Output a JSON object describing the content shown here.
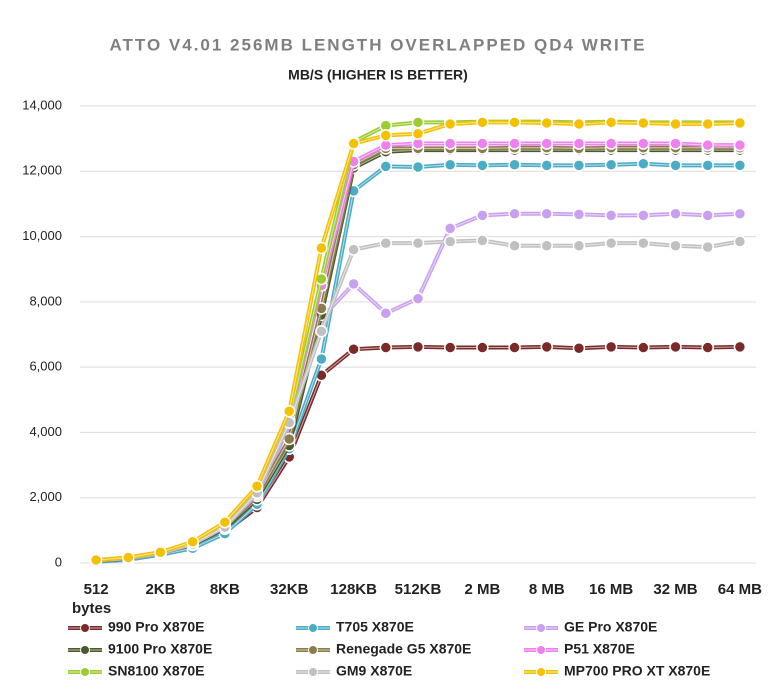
{
  "chart_data": {
    "type": "line",
    "title": "ATTO V4.01 256MB LENGTH OVERLAPPED QD4 WRITE",
    "subtitle": "MB/S (HIGHER IS BETTER)",
    "x_label": "bytes",
    "categories": [
      "512",
      null,
      "2KB",
      null,
      "8KB",
      null,
      "32KB",
      null,
      "128KB",
      null,
      "512KB",
      null,
      "2 MB",
      null,
      "8 MB",
      null,
      "16 MB",
      null,
      "32 MB",
      null,
      "64 MB"
    ],
    "ylim": [
      0,
      14000
    ],
    "yticks": [
      0,
      {
        "value": 2000,
        "label": "2,000"
      },
      {
        "value": 4000,
        "label": "4,000"
      },
      {
        "value": 6000,
        "label": "6,000"
      },
      {
        "value": 8000,
        "label": "8,000"
      },
      {
        "value": 10000,
        "label": "10,000"
      },
      {
        "value": 12000,
        "label": "12,000"
      },
      {
        "value": 14000,
        "label": "14,000"
      }
    ],
    "grid": true,
    "series": [
      {
        "name": "990 Pro X870E",
        "color": "#7b2a2a",
        "values": [
          60,
          120,
          280,
          500,
          950,
          1700,
          3250,
          5750,
          6550,
          6600,
          6620,
          6600,
          6600,
          6600,
          6620,
          6580,
          6620,
          6600,
          6620,
          6600,
          6620
        ]
      },
      {
        "name": "T705 X870E",
        "color": "#4bacc6",
        "values": [
          40,
          100,
          250,
          450,
          900,
          1800,
          3500,
          6250,
          11400,
          12150,
          12130,
          12200,
          12180,
          12200,
          12180,
          12180,
          12200,
          12230,
          12180,
          12180,
          12180
        ]
      },
      {
        "name": "GE Pro X870E",
        "color": "#c9a0f0",
        "values": [
          80,
          150,
          300,
          550,
          1050,
          1950,
          4000,
          7500,
          8550,
          7650,
          8100,
          10250,
          10650,
          10700,
          10700,
          10680,
          10650,
          10650,
          10700,
          10650,
          10700
        ]
      },
      {
        "name": "9100 Pro X870E",
        "color": "#4a5a2a",
        "values": [
          70,
          140,
          300,
          560,
          1050,
          1950,
          3600,
          7600,
          12100,
          12600,
          12650,
          12650,
          12650,
          12650,
          12650,
          12650,
          12650,
          12650,
          12650,
          12650,
          12650
        ]
      },
      {
        "name": "Renegade G5 X870E",
        "color": "#8b7d4a",
        "values": [
          80,
          150,
          300,
          580,
          1100,
          2050,
          3800,
          7800,
          12200,
          12700,
          12700,
          12700,
          12700,
          12720,
          12720,
          12700,
          12720,
          12720,
          12720,
          12720,
          12720
        ]
      },
      {
        "name": "P51 X870E",
        "color": "#f07ff0",
        "values": [
          80,
          150,
          300,
          600,
          1150,
          2100,
          4300,
          8500,
          12300,
          12800,
          12850,
          12850,
          12850,
          12850,
          12850,
          12850,
          12850,
          12850,
          12850,
          12800,
          12800
        ]
      },
      {
        "name": "SN8100 X870E",
        "color": "#9acd32",
        "values": [
          90,
          170,
          330,
          630,
          1200,
          2300,
          4400,
          8700,
          12900,
          13400,
          13500,
          13500,
          13520,
          13520,
          13520,
          13500,
          13520,
          13500,
          13500,
          13500,
          13500
        ]
      },
      {
        "name": "GM9 X870E",
        "color": "#c0c0c0",
        "values": [
          80,
          150,
          300,
          580,
          1100,
          2150,
          4300,
          7100,
          9600,
          9800,
          9800,
          9850,
          9880,
          9720,
          9720,
          9720,
          9800,
          9800,
          9720,
          9680,
          9850
        ]
      },
      {
        "name": "MP700 PRO XT X870E",
        "color": "#f5c000",
        "values": [
          90,
          170,
          330,
          650,
          1250,
          2350,
          4650,
          9650,
          12850,
          13100,
          13150,
          13450,
          13500,
          13500,
          13480,
          13450,
          13500,
          13480,
          13450,
          13450,
          13480
        ]
      }
    ]
  }
}
